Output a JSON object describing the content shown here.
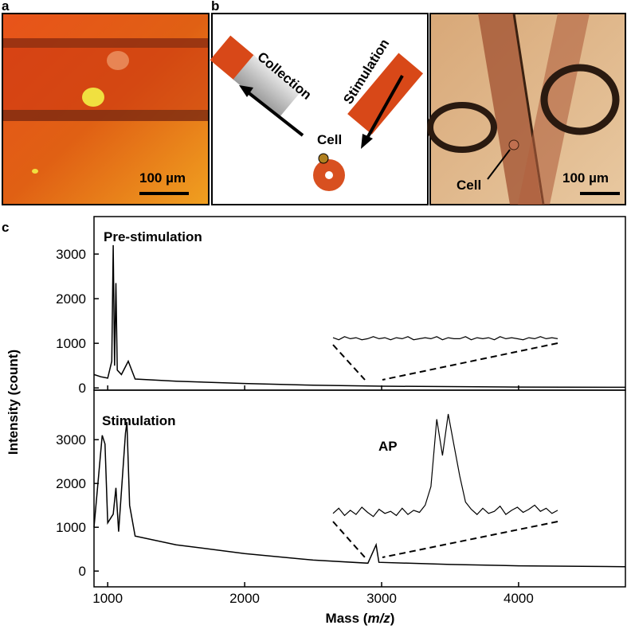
{
  "panels": {
    "a": {
      "label": "a",
      "scale_bar": "100 µm"
    },
    "b": {
      "label": "b",
      "collection": "Collection",
      "stimulation": "Stimulation",
      "cell": "Cell"
    },
    "b_photo": {
      "cell": "Cell",
      "scale_bar": "100 µm"
    },
    "c": {
      "label": "c",
      "y_label": "Intensity (count)"
    }
  },
  "chart_data": [
    {
      "type": "line",
      "annotation": "Pre-stimulation",
      "color": "#000000",
      "x": [
        900,
        950,
        1000,
        1030,
        1040,
        1050,
        1060,
        1070,
        1100,
        1150,
        1200,
        1500,
        2000,
        2500,
        3000,
        4000,
        4780
      ],
      "values": [
        300,
        250,
        220,
        600,
        3200,
        500,
        2350,
        400,
        300,
        600,
        200,
        150,
        100,
        60,
        40,
        20,
        15
      ],
      "xlim": [
        900,
        4780
      ],
      "xticks": [
        1000,
        2000,
        3000,
        4000
      ],
      "ylim": [
        -50,
        3840
      ],
      "yticks": [
        0,
        1000,
        2000,
        3000
      ],
      "inset": {
        "values": [
          3,
          1,
          4,
          2,
          3,
          1,
          2,
          4,
          2,
          3,
          1,
          3,
          2,
          4,
          1,
          2,
          3,
          2,
          4,
          1,
          3,
          2,
          2,
          4,
          1,
          3,
          2,
          3,
          1,
          4,
          2,
          3,
          2,
          1,
          3,
          2,
          4,
          2,
          3,
          2
        ]
      }
    },
    {
      "type": "line",
      "annotation": "Stimulation",
      "inset_annotation": "AP",
      "color": "#000000",
      "x": [
        900,
        960,
        980,
        1000,
        1040,
        1060,
        1080,
        1130,
        1140,
        1160,
        1200,
        1500,
        2000,
        2500,
        2900,
        2960,
        2980,
        3500,
        4000,
        4780
      ],
      "values": [
        1000,
        3100,
        2900,
        1100,
        1300,
        1900,
        900,
        3150,
        3400,
        1500,
        800,
        600,
        400,
        250,
        180,
        600,
        200,
        150,
        120,
        100
      ],
      "xlim": [
        900,
        4780
      ],
      "xticks": [
        1000,
        2000,
        3000,
        4000
      ],
      "ylim": [
        -360,
        4130
      ],
      "yticks": [
        0,
        1000,
        2000,
        3000
      ],
      "x_label_parts": [
        "Mass (",
        "m/z",
        ")"
      ],
      "inset": {
        "values": [
          4,
          9,
          2,
          7,
          3,
          10,
          5,
          1,
          8,
          4,
          6,
          2,
          9,
          3,
          7,
          5,
          12,
          30,
          95,
          60,
          100,
          70,
          40,
          15,
          8,
          3,
          9,
          4,
          6,
          11,
          3,
          7,
          10,
          5,
          8,
          12,
          6,
          9,
          4,
          7
        ]
      }
    }
  ]
}
